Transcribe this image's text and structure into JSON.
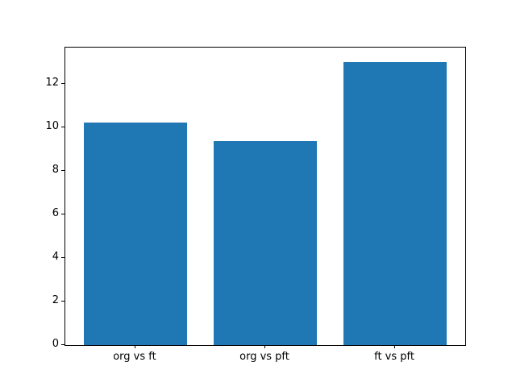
{
  "chart_data": {
    "type": "bar",
    "categories": [
      "org vs ft",
      "org vs pft",
      "ft vs pft"
    ],
    "values": [
      10.2,
      9.35,
      13.0
    ],
    "title": "",
    "xlabel": "",
    "ylabel": "",
    "ylim": [
      0,
      13.65
    ],
    "yticks": [
      0,
      2,
      4,
      6,
      8,
      10,
      12
    ],
    "bar_color": "#1f77b4",
    "axis_color": "#000000",
    "background_color": "#ffffff",
    "grid": false,
    "legend": "none"
  }
}
